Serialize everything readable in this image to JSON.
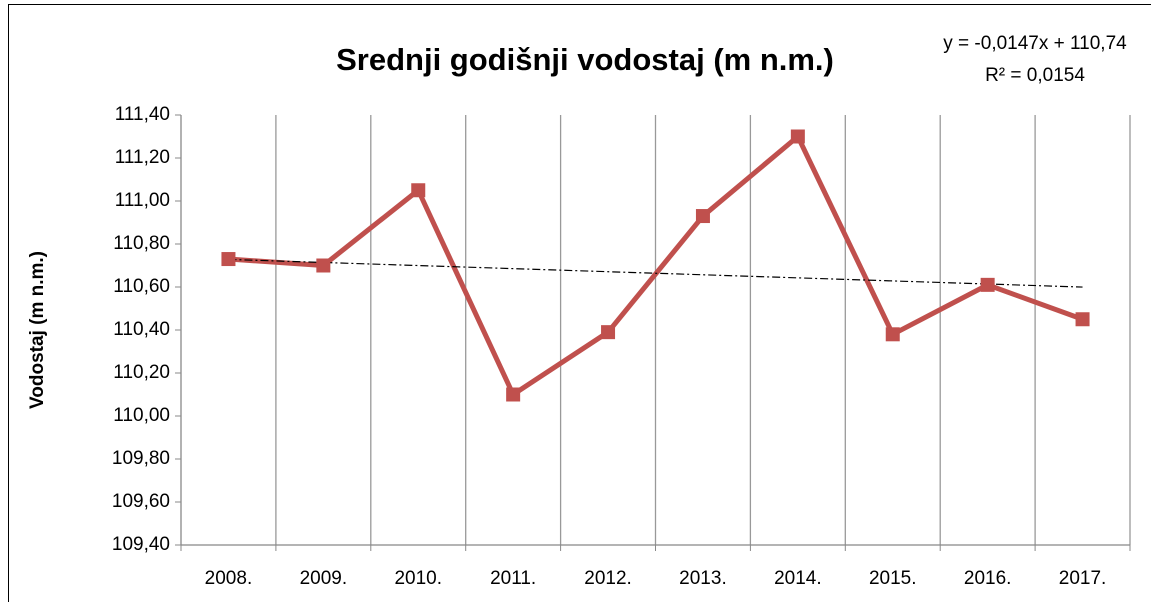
{
  "chart_data": {
    "type": "line",
    "title": "Srednji godišnji vodostaj (m n.m.)",
    "y_label": "Vodostaj (m n.m.)",
    "annotations": [
      "y = -0,0147x + 110,74",
      "R² = 0,0154"
    ],
    "categories": [
      "2008.",
      "2009.",
      "2010.",
      "2011.",
      "2012.",
      "2013.",
      "2014.",
      "2015.",
      "2016.",
      "2017."
    ],
    "series": [
      {
        "name": "Vodostaj",
        "color": "#c0504d",
        "values": [
          110.73,
          110.7,
          111.05,
          110.1,
          110.39,
          110.93,
          111.3,
          110.38,
          110.61,
          110.45
        ]
      }
    ],
    "trendline": true,
    "ylim": [
      109.4,
      111.4
    ],
    "yticks": [
      {
        "value": 109.4,
        "label": "109,40"
      },
      {
        "value": 109.6,
        "label": "109,60"
      },
      {
        "value": 109.8,
        "label": "109,80"
      },
      {
        "value": 110.0,
        "label": "110,00"
      },
      {
        "value": 110.2,
        "label": "110,20"
      },
      {
        "value": 110.4,
        "label": "110,40"
      },
      {
        "value": 110.6,
        "label": "110,60"
      },
      {
        "value": 110.8,
        "label": "110,80"
      },
      {
        "value": 111.0,
        "label": "111,00"
      },
      {
        "value": 111.2,
        "label": "111,20"
      },
      {
        "value": 111.4,
        "label": "111,40"
      }
    ],
    "grid": "x"
  }
}
